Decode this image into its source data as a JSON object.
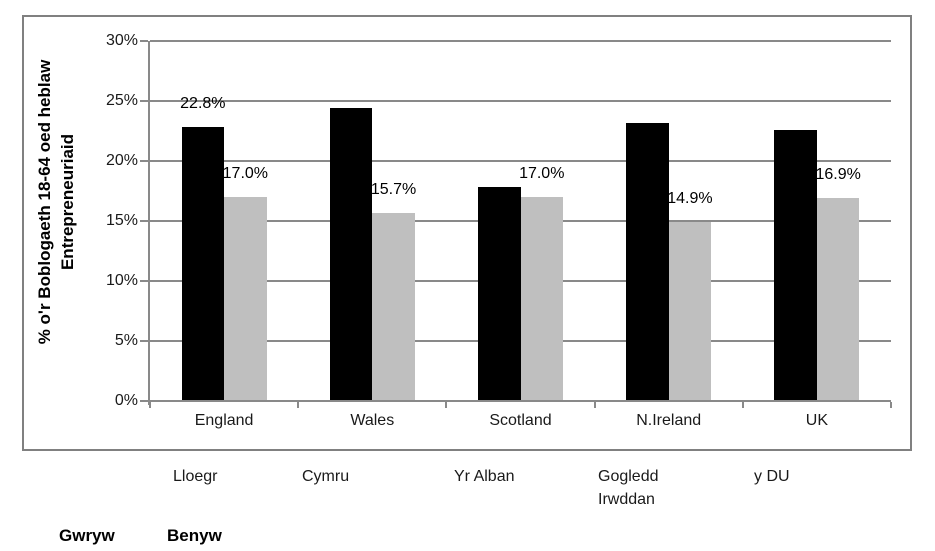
{
  "chart_data": {
    "type": "bar",
    "title": "",
    "categories": [
      "England",
      "Wales",
      "Scotland",
      "N.Ireland",
      "UK"
    ],
    "categories_welsh": [
      "Lloegr",
      "Cymru",
      "Yr Alban",
      "Gogledd Irwddan",
      "y DU"
    ],
    "series": [
      {
        "name": "Gwryw",
        "color": "#000000",
        "values": [
          22.8,
          24.4,
          17.8,
          23.2,
          22.6
        ],
        "data_labels": [
          "22.8%",
          "",
          "",
          "",
          ""
        ]
      },
      {
        "name": "Benyw",
        "color": "#bfbfbf",
        "values": [
          17.0,
          15.7,
          17.0,
          14.9,
          16.9
        ],
        "data_labels": [
          "17.0%",
          "15.7%",
          "17.0%",
          "14.9%",
          "16.9%"
        ]
      }
    ],
    "xlabel": "",
    "ylabel": "% o'r Boblogaeth 18-64 oed heblaw Entrepreneuriaid",
    "ylabel_lines": [
      "% o'r Boblogaeth 18-64 oed heblaw",
      "Entrepreneuriaid"
    ],
    "ylim": [
      0,
      30
    ],
    "ytick_step": 5,
    "ytick_labels": [
      "0%",
      "5%",
      "10%",
      "15%",
      "20%",
      "25%",
      "30%"
    ],
    "grid": true,
    "legend_position": "bottom-left",
    "legend": {
      "entries": [
        {
          "label": "Gwryw",
          "color": "#000000"
        },
        {
          "label": "Benyw",
          "color": "#bfbfbf"
        }
      ]
    },
    "colors": {
      "gridline": "#898989",
      "axis": "#898989",
      "frame_border": "#808080",
      "text": "#1a1a1a"
    }
  }
}
